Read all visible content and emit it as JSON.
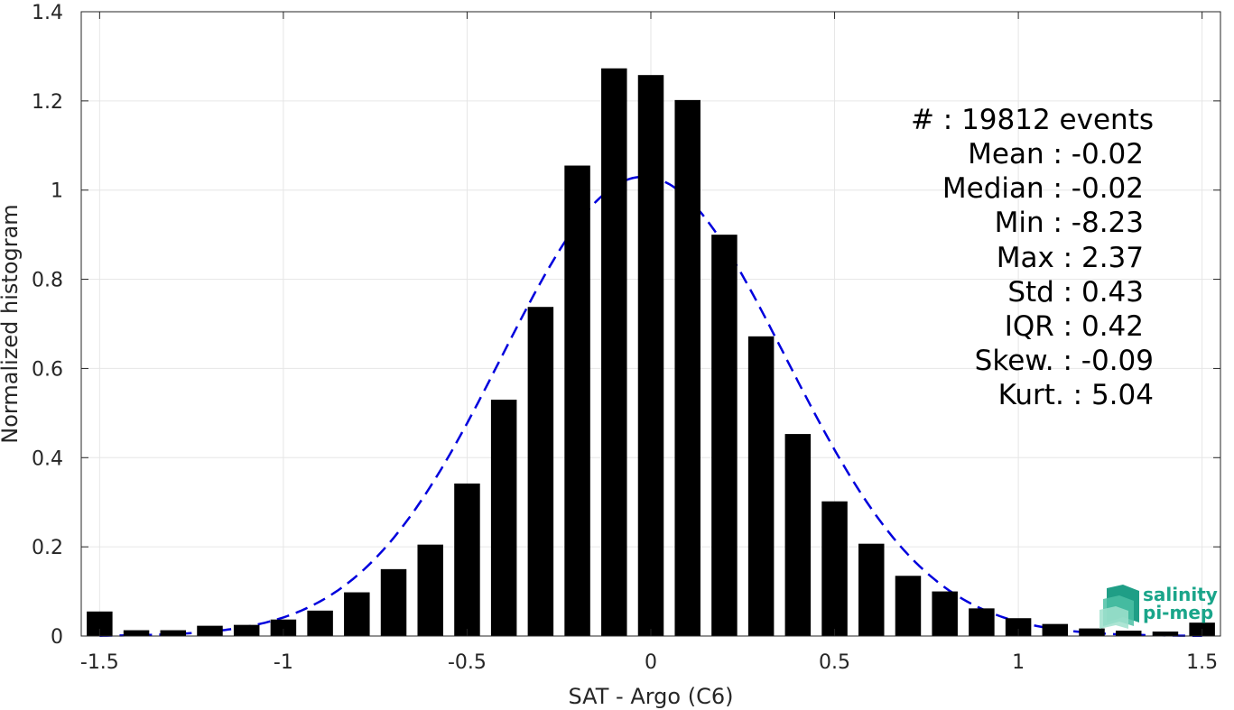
{
  "chart_data": {
    "type": "bar",
    "xlabel": "SAT - Argo (C6)",
    "ylabel": "Normalized histogram",
    "xlim": [
      -1.55,
      1.55
    ],
    "ylim": [
      0,
      1.4
    ],
    "xticks": [
      -1.5,
      -1,
      -0.5,
      0,
      0.5,
      1,
      1.5
    ],
    "xtick_labels": [
      "-1.5",
      "-1",
      "-0.5",
      "0",
      "0.5",
      "1",
      "1.5"
    ],
    "yticks": [
      0,
      0.2,
      0.4,
      0.6,
      0.8,
      1,
      1.2,
      1.4
    ],
    "ytick_labels": [
      "0",
      "0.2",
      "0.4",
      "0.6",
      "0.8",
      "1",
      "1.2",
      "1.4"
    ],
    "grid": true,
    "bar_color": "#000000",
    "bar_width": 0.07,
    "x": [
      -1.5,
      -1.4,
      -1.3,
      -1.2,
      -1.1,
      -1.0,
      -0.9,
      -0.8,
      -0.7,
      -0.6,
      -0.5,
      -0.4,
      -0.3,
      -0.2,
      -0.1,
      0.0,
      0.1,
      0.2,
      0.3,
      0.4,
      0.5,
      0.6,
      0.7,
      0.8,
      0.9,
      1.0,
      1.1,
      1.2,
      1.3,
      1.4,
      1.5
    ],
    "values": [
      0.055,
      0.013,
      0.013,
      0.023,
      0.025,
      0.037,
      0.057,
      0.098,
      0.15,
      0.205,
      0.342,
      0.53,
      0.738,
      1.055,
      1.273,
      1.258,
      1.202,
      0.9,
      0.672,
      0.453,
      0.302,
      0.207,
      0.135,
      0.1,
      0.062,
      0.04,
      0.027,
      0.017,
      0.012,
      0.01,
      0.03
    ],
    "fit_curve": {
      "style": "dashed",
      "color": "#0000dd",
      "mean": -0.02,
      "std": 0.387,
      "peak": 1.03
    },
    "annotations": [
      "#  : 19812 events",
      "Mean : -0.02",
      "Median : -0.02",
      "Min : -8.23",
      "Max : 2.37",
      "Std : 0.43",
      "IQR : 0.42",
      "Skew. : -0.09",
      "Kurt. : 5.04"
    ]
  },
  "logo": {
    "line1": "salinity",
    "line2": "pi-mep"
  }
}
